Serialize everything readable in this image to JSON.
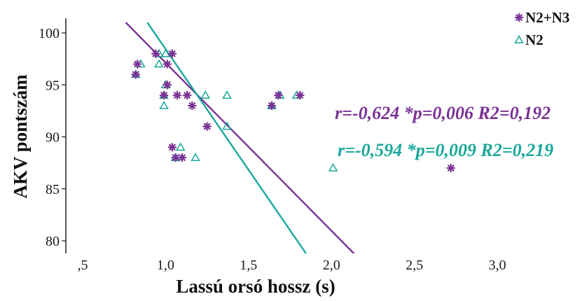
{
  "chart_data": {
    "type": "scatter",
    "xlabel": "Lassú orsó hossz (s)",
    "ylabel": "AKV pontszám",
    "xlim": [
      0.5,
      3.0
    ],
    "ylim": [
      79,
      101
    ],
    "x_ticks": [
      0.5,
      1.0,
      1.5,
      2.0,
      2.5,
      3.0
    ],
    "x_tick_labels": [
      ",5",
      "1,0",
      "1,5",
      "2,0",
      "2,5",
      "3,0"
    ],
    "y_ticks": [
      80,
      85,
      90,
      95,
      100
    ],
    "y_tick_labels": [
      "80",
      "85",
      "90",
      "95",
      "100"
    ],
    "grid": false,
    "legend_position": "top-right",
    "series": [
      {
        "name": "N2+N3",
        "marker": "asterisk",
        "color": "#7b3294",
        "points": [
          [
            0.83,
            97
          ],
          [
            0.82,
            96
          ],
          [
            0.94,
            98
          ],
          [
            1.04,
            98
          ],
          [
            1.01,
            97
          ],
          [
            1.01,
            95
          ],
          [
            0.99,
            94
          ],
          [
            1.07,
            94
          ],
          [
            1.13,
            94
          ],
          [
            1.16,
            93
          ],
          [
            1.25,
            91
          ],
          [
            1.04,
            89
          ],
          [
            1.06,
            88
          ],
          [
            1.1,
            88
          ],
          [
            1.64,
            93
          ],
          [
            1.68,
            94
          ],
          [
            1.81,
            94
          ],
          [
            2.72,
            87
          ]
        ],
        "fit": {
          "x": [
            0.76,
            2.14
          ],
          "y": [
            101,
            78.7
          ]
        },
        "annotation": "r=-0,624  *p=0,006 R2=0,192"
      },
      {
        "name": "N2",
        "marker": "triangle-open",
        "color": "#1aa89a",
        "points": [
          [
            0.85,
            97
          ],
          [
            0.82,
            96
          ],
          [
            0.96,
            98
          ],
          [
            1.0,
            98
          ],
          [
            0.96,
            97
          ],
          [
            1.0,
            95
          ],
          [
            0.99,
            94
          ],
          [
            0.99,
            93
          ],
          [
            1.24,
            94
          ],
          [
            1.37,
            94
          ],
          [
            1.64,
            93
          ],
          [
            1.69,
            94
          ],
          [
            1.79,
            94
          ],
          [
            1.37,
            91
          ],
          [
            1.09,
            89
          ],
          [
            1.06,
            88
          ],
          [
            1.18,
            88
          ],
          [
            2.01,
            87
          ]
        ],
        "fit": {
          "x": [
            0.89,
            1.85
          ],
          "y": [
            101,
            78.7
          ]
        },
        "annotation": "r=-0,594  *p=0,009 R2=0,219"
      }
    ]
  }
}
